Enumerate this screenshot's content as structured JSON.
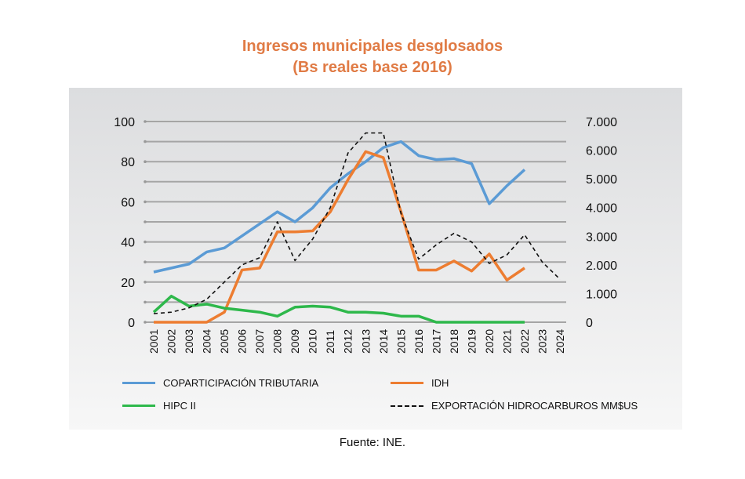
{
  "chart_data": {
    "type": "line",
    "title": "Ingresos municipales desglosados",
    "subtitle": "(Bs reales base 2016)",
    "x": [
      "2001",
      "2002",
      "2003",
      "2004",
      "2005",
      "2006",
      "2007",
      "2008",
      "2009",
      "2010",
      "2011",
      "2012",
      "2013",
      "2014",
      "2015",
      "2016",
      "2017",
      "2018",
      "2019",
      "2020",
      "2021",
      "2022",
      "2023",
      "2024"
    ],
    "y_left": {
      "range": [
        0,
        100
      ],
      "ticks": [
        "0",
        "20",
        "40",
        "60",
        "80",
        "100"
      ]
    },
    "y_right": {
      "range": [
        0,
        7000
      ],
      "ticks": [
        "0",
        "1.000",
        "2.000",
        "3.000",
        "4.000",
        "5.000",
        "6.000",
        "7.000"
      ]
    },
    "grid": true,
    "legend_placement": "bottom",
    "series": [
      {
        "name": "COPARTICIPACIÓN TRIBUTARIA",
        "axis": "left",
        "color": "#5b9bd5",
        "dashed": false,
        "values": [
          25,
          27,
          29,
          35,
          37,
          43,
          49,
          55,
          50,
          57,
          67,
          74,
          80,
          87,
          90,
          83,
          81,
          81.5,
          79,
          59,
          68,
          76,
          null,
          null
        ]
      },
      {
        "name": "IDH",
        "axis": "left",
        "color": "#ed7d31",
        "dashed": false,
        "values": [
          0,
          0,
          0,
          0,
          5,
          26,
          27,
          45,
          45,
          45.5,
          55,
          71,
          85,
          82,
          55,
          26,
          26,
          30.5,
          25.5,
          34,
          21,
          27,
          null,
          null
        ]
      },
      {
        "name": "HIPC II",
        "axis": "left",
        "color": "#2eb84b",
        "dashed": false,
        "values": [
          5,
          13,
          8,
          9,
          7,
          6,
          5,
          3,
          7.5,
          8,
          7.5,
          5,
          5,
          4.5,
          3,
          3,
          0,
          0,
          0,
          0,
          0,
          0,
          null,
          null
        ]
      },
      {
        "name": "EXPORTACIÓN HIDROCARBUROS MM$US",
        "axis": "right",
        "color": "#111111",
        "dashed": true,
        "values": [
          300,
          350,
          500,
          800,
          1400,
          2000,
          2250,
          3500,
          2150,
          2900,
          4000,
          5900,
          6600,
          6600,
          3800,
          2200,
          2700,
          3100,
          2800,
          2050,
          2350,
          3050,
          2100,
          1500
        ]
      }
    ]
  },
  "source": "Fuente: INE."
}
